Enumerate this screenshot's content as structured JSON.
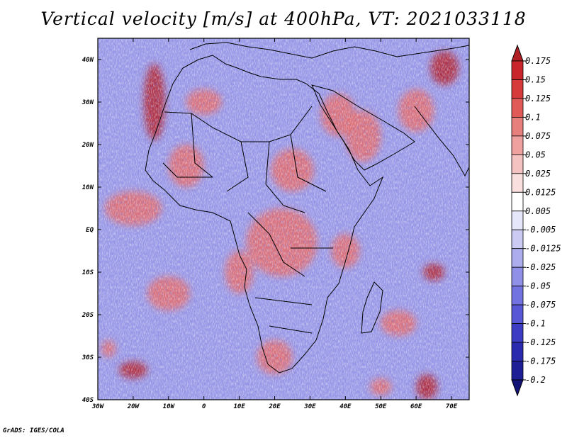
{
  "chart_data": {
    "type": "heatmap",
    "title": "Vertical velocity [m/s] at 400hPa, VT: 2021033118",
    "variable": "Vertical velocity",
    "units": "m/s",
    "level": "400hPa",
    "valid_time": "2021033118",
    "x_ticks": [
      "30W",
      "20W",
      "10W",
      "0",
      "10E",
      "20E",
      "30E",
      "40E",
      "50E",
      "60E",
      "70E"
    ],
    "x_values": [
      -30,
      -20,
      -10,
      0,
      10,
      20,
      30,
      40,
      50,
      60,
      70
    ],
    "y_ticks": [
      "40N",
      "30N",
      "20N",
      "10N",
      "EQ",
      "10S",
      "20S",
      "30S",
      "40S"
    ],
    "y_values": [
      40,
      30,
      20,
      10,
      0,
      -10,
      -20,
      -30,
      -40
    ],
    "xlim": [
      -30,
      75
    ],
    "ylim": [
      -40,
      45
    ],
    "colorbar": {
      "labels": [
        "0.175",
        "0.15",
        "0.125",
        "0.1",
        "0.075",
        "0.05",
        "0.025",
        "0.0125",
        "0.005",
        "-0.005",
        "-0.0125",
        "-0.025",
        "-0.05",
        "-0.075",
        "-0.1",
        "-0.125",
        "-0.175",
        "-0.2"
      ],
      "colors": [
        "#b01e26",
        "#c8262c",
        "#d73a3a",
        "#e05a58",
        "#e77f7d",
        "#eea19f",
        "#f4c3c1",
        "#f9e0df",
        "#ffffff",
        "#e6e6fa",
        "#cacaf3",
        "#adadee",
        "#9090e8",
        "#7272e0",
        "#5858d6",
        "#3c3cc4",
        "#2a2aae",
        "#1e1e96",
        "#141478"
      ]
    }
  },
  "credit": "GrADS: IGES/COLA",
  "field_colors": {
    "background": "#8f8fe6",
    "positive": "#e46a6a",
    "strong_positive": "#b3202a",
    "land_outline": "#000000"
  }
}
